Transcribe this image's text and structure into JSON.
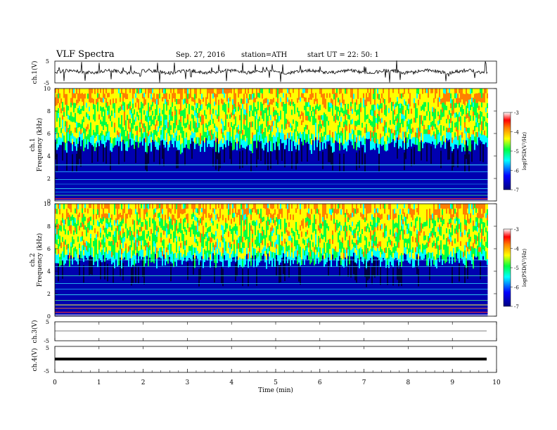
{
  "header": {
    "title": "VLF  Spectra",
    "date": "Sep. 27, 2016",
    "station": "station=ATH",
    "start_ut": "start  UT =   22: 50: 1"
  },
  "colors": {
    "colormap": [
      "#000080",
      "#0000ff",
      "#00ffff",
      "#00ff40",
      "#ffff00",
      "#ff8000",
      "#ff0000",
      "#ffffff"
    ]
  },
  "chart_data": [
    {
      "type": "line",
      "name": "ch1-waveform",
      "ylabel": "ch.1(V)",
      "ylim": [
        -5,
        5
      ],
      "yticks": [
        "5",
        "-5"
      ],
      "x_range_min": [
        0,
        9.8
      ]
    },
    {
      "type": "heatmap",
      "name": "ch1-spectrogram",
      "ylabel_top": "ch.1",
      "ylabel": "Frequency  (kHz)",
      "ylim": [
        0,
        10
      ],
      "yticks": [
        "0",
        "2",
        "4",
        "6",
        "8",
        "10"
      ],
      "colorbar": {
        "label": "log(PSD(V²/Hz)",
        "range": [
          -7,
          -3
        ],
        "ticks": [
          "-3",
          "-4",
          "-5",
          "-6",
          "-7"
        ]
      }
    },
    {
      "type": "heatmap",
      "name": "ch2-spectrogram",
      "ylabel_top": "ch.2",
      "ylabel": "Frequency  (kHz)",
      "ylim": [
        0,
        10
      ],
      "yticks": [
        "0",
        "2",
        "4",
        "6",
        "8",
        "10"
      ],
      "colorbar": {
        "label": "log(PSD(V²/Hz)",
        "range": [
          -7,
          -3
        ],
        "ticks": [
          "-3",
          "-4",
          "-5",
          "-6",
          "-7"
        ]
      }
    },
    {
      "type": "line",
      "name": "ch3-waveform",
      "ylabel": "ch.3(V)",
      "ylim": [
        -5,
        5
      ],
      "yticks": [
        "5",
        "-5"
      ],
      "constant_value": 0
    },
    {
      "type": "line",
      "name": "ch4-waveform",
      "ylabel": "ch.4(V)",
      "ylim": [
        -5,
        5
      ],
      "yticks": [
        "5",
        "-5"
      ],
      "constant_value": 0
    },
    {
      "type": "axis",
      "name": "time-axis",
      "xlabel": "Time  (min)",
      "xlim": [
        0,
        10
      ],
      "xticks": [
        "0",
        "1",
        "2",
        "3",
        "4",
        "5",
        "6",
        "7",
        "8",
        "9",
        "10"
      ]
    }
  ]
}
